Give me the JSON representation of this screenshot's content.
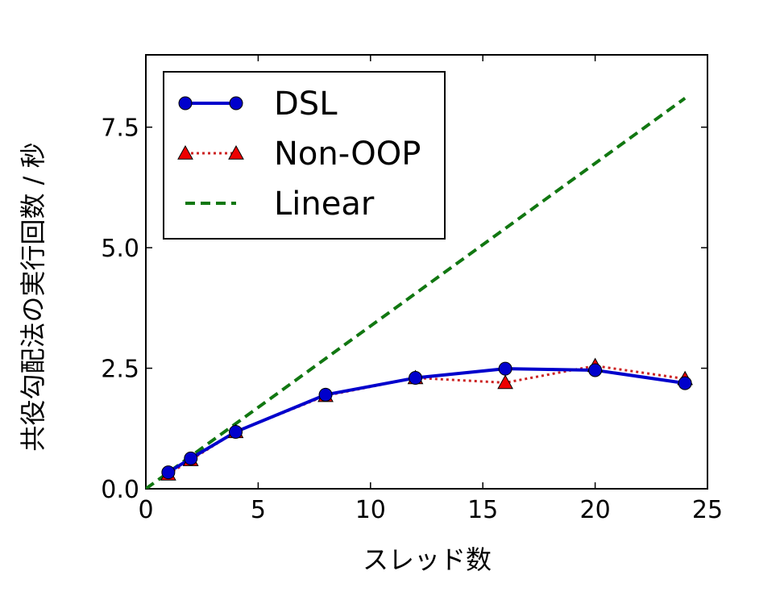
{
  "chart_data": {
    "type": "line",
    "title": "",
    "xlabel": "スレッド数",
    "ylabel": "共役勾配法の実行回数 / 秒",
    "xlim": [
      0,
      25
    ],
    "ylim": [
      0,
      9.0
    ],
    "xticks": [
      0,
      5,
      10,
      15,
      20,
      25
    ],
    "xtick_labels": [
      "0",
      "5",
      "10",
      "15",
      "20",
      "25"
    ],
    "yticks": [
      0,
      2.5,
      5.0,
      7.5
    ],
    "ytick_labels": [
      "0.0",
      "2.5",
      "5.0",
      "7.5"
    ],
    "grid": false,
    "legend_position": "top-left",
    "series": [
      {
        "name": "DSL",
        "style": "solid",
        "marker": "circle",
        "color": "#0000cc",
        "x": [
          1,
          2,
          4,
          8,
          12,
          16,
          20,
          24
        ],
        "y": [
          0.34,
          0.63,
          1.18,
          1.95,
          2.3,
          2.49,
          2.46,
          2.19
        ]
      },
      {
        "name": "Non-OOP",
        "style": "dotted",
        "marker": "triangle",
        "color": "#cc2222",
        "marker_color": "#ee0000",
        "x": [
          1,
          2,
          4,
          8,
          12,
          16,
          20,
          24
        ],
        "y": [
          0.3,
          0.6,
          1.18,
          1.93,
          2.3,
          2.2,
          2.55,
          2.28
        ]
      },
      {
        "name": "Linear",
        "style": "dashed",
        "marker": "none",
        "color": "#117711",
        "x": [
          0,
          24
        ],
        "y": [
          0,
          8.1
        ]
      }
    ]
  }
}
